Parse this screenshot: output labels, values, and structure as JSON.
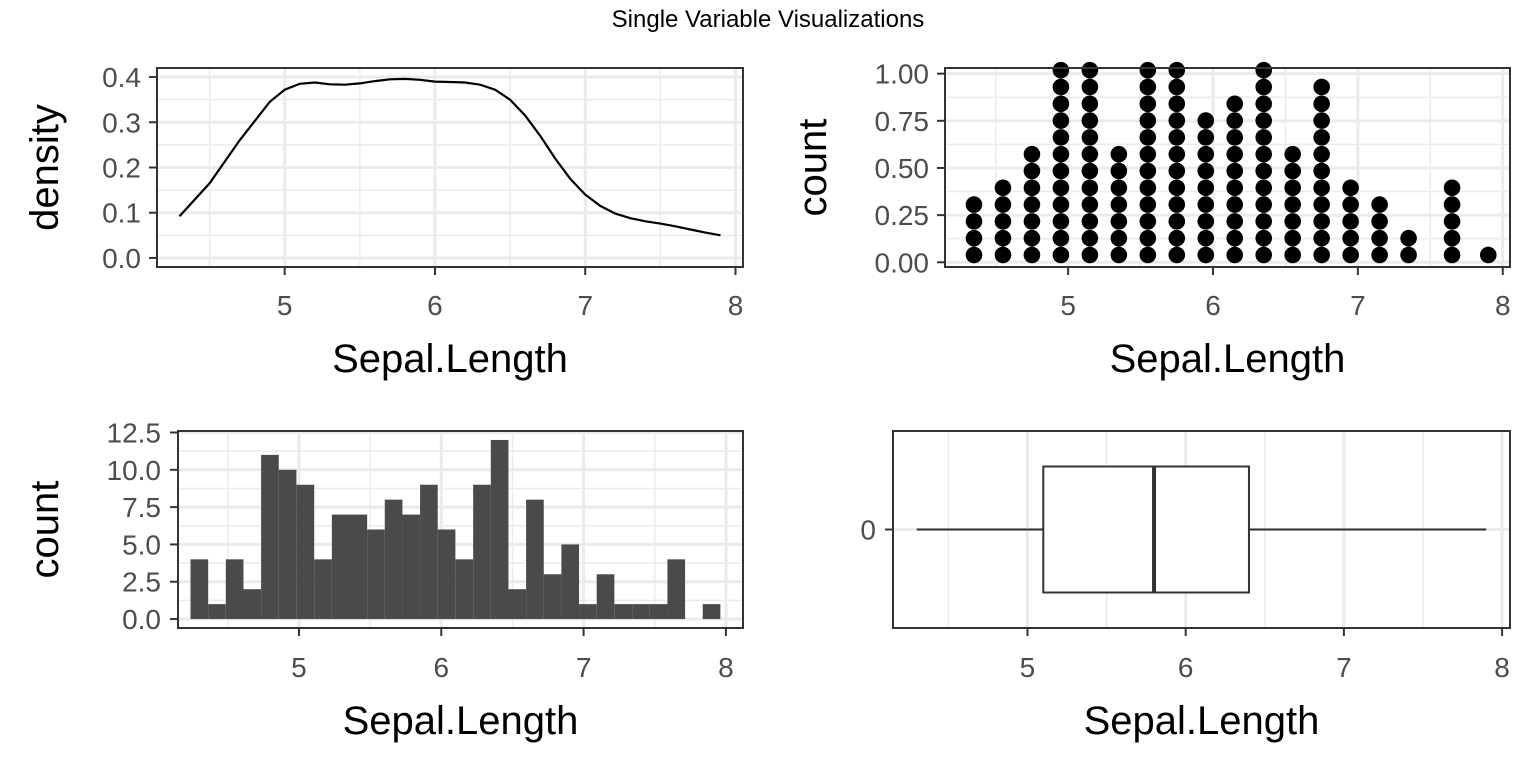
{
  "title": "Single Variable Visualizations",
  "chart_data": [
    {
      "type": "density",
      "xlabel": "Sepal.Length",
      "ylabel": "density",
      "xlim": [
        4.15,
        8.05
      ],
      "ylim": [
        -0.02,
        0.42
      ],
      "x_ticks": [
        "5",
        "6",
        "7",
        "8"
      ],
      "y_ticks": [
        "0.0",
        "0.1",
        "0.2",
        "0.3",
        "0.4"
      ],
      "x": [
        4.3,
        4.5,
        4.7,
        4.9,
        5.0,
        5.1,
        5.2,
        5.3,
        5.4,
        5.5,
        5.6,
        5.7,
        5.8,
        5.9,
        6.0,
        6.1,
        6.2,
        6.3,
        6.4,
        6.5,
        6.6,
        6.7,
        6.8,
        6.9,
        7.0,
        7.1,
        7.2,
        7.3,
        7.4,
        7.5,
        7.6,
        7.7,
        7.8,
        7.9
      ],
      "y": [
        0.092,
        0.165,
        0.26,
        0.345,
        0.372,
        0.385,
        0.388,
        0.384,
        0.383,
        0.386,
        0.391,
        0.395,
        0.396,
        0.394,
        0.39,
        0.389,
        0.388,
        0.383,
        0.372,
        0.35,
        0.315,
        0.27,
        0.22,
        0.175,
        0.14,
        0.115,
        0.098,
        0.088,
        0.081,
        0.076,
        0.07,
        0.063,
        0.056,
        0.05
      ],
      "grid": true
    },
    {
      "type": "scatter",
      "subtype": "dotplot",
      "xlabel": "Sepal.Length",
      "ylabel": "count",
      "xlim": [
        4.15,
        8.05
      ],
      "ylim": [
        -0.025,
        1.03
      ],
      "x_ticks": [
        "5",
        "6",
        "7",
        "8"
      ],
      "y_ticks": [
        "0.00",
        "0.25",
        "0.50",
        "0.75",
        "1.00"
      ],
      "stacks": [
        {
          "x": 4.35,
          "count": 4
        },
        {
          "x": 4.55,
          "count": 5
        },
        {
          "x": 4.75,
          "count": 7
        },
        {
          "x": 4.95,
          "count": 12
        },
        {
          "x": 5.15,
          "count": 12
        },
        {
          "x": 5.35,
          "count": 7
        },
        {
          "x": 5.55,
          "count": 12
        },
        {
          "x": 5.75,
          "count": 12
        },
        {
          "x": 5.95,
          "count": 9
        },
        {
          "x": 6.15,
          "count": 10
        },
        {
          "x": 6.35,
          "count": 12
        },
        {
          "x": 6.55,
          "count": 7
        },
        {
          "x": 6.75,
          "count": 11
        },
        {
          "x": 6.95,
          "count": 5
        },
        {
          "x": 7.15,
          "count": 4
        },
        {
          "x": 7.35,
          "count": 2
        },
        {
          "x": 7.65,
          "count": 5
        },
        {
          "x": 7.9,
          "count": 1
        }
      ],
      "grid": true
    },
    {
      "type": "bar",
      "subtype": "histogram",
      "xlabel": "Sepal.Length",
      "ylabel": "count",
      "xlim": [
        4.15,
        8.12
      ],
      "ylim": [
        -0.6,
        12.6
      ],
      "x_ticks": [
        "5",
        "6",
        "7",
        "8"
      ],
      "y_ticks": [
        "0.0",
        "2.5",
        "5.0",
        "7.5",
        "10.0",
        "12.5"
      ],
      "bin_width": 0.1241,
      "bin_centers": [
        4.3,
        4.424,
        4.548,
        4.672,
        4.796,
        4.92,
        5.045,
        5.169,
        5.293,
        5.417,
        5.541,
        5.665,
        5.789,
        5.913,
        6.037,
        6.162,
        6.286,
        6.41,
        6.534,
        6.658,
        6.782,
        6.906,
        7.03,
        7.154,
        7.279,
        7.403,
        7.527,
        7.651,
        7.775,
        7.899
      ],
      "values": [
        4,
        1,
        4,
        2,
        11,
        10,
        9,
        4,
        7,
        7,
        6,
        8,
        7,
        9,
        6,
        4,
        9,
        12,
        2,
        8,
        3,
        5,
        1,
        3,
        1,
        1,
        1,
        4,
        0,
        1
      ],
      "grid": true
    },
    {
      "type": "boxplot",
      "xlabel": "Sepal.Length",
      "ylabel": "",
      "xlim": [
        4.15,
        8.05
      ],
      "x_ticks": [
        "5",
        "6",
        "7",
        "8"
      ],
      "y_ticks": [
        "0"
      ],
      "min": 4.3,
      "q1": 5.1,
      "median": 5.8,
      "q3": 6.4,
      "max": 7.9,
      "grid": true
    }
  ]
}
